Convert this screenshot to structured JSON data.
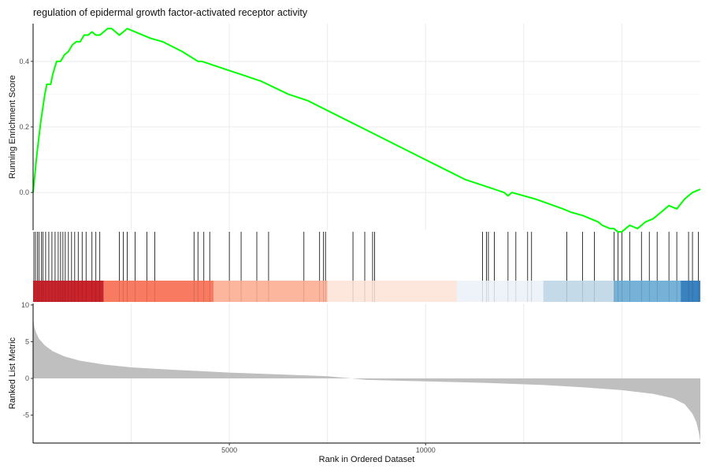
{
  "title": "regulation of epidermal growth factor-activated receptor activity",
  "chart_data": {
    "type": "line",
    "title": "regulation of epidermal growth factor-activated receptor activity",
    "xlabel": "Rank in Ordered Dataset",
    "x_range": [
      0,
      15000
    ],
    "x_ticks": [
      5000,
      10000
    ],
    "panels": {
      "running_score": {
        "ylabel": "Running Enrichment Score",
        "ylim": [
          -0.115,
          0.515
        ],
        "y_ticks": [
          0.0,
          0.2,
          0.4
        ],
        "color": "#00ff00",
        "points": [
          [
            0,
            0.0
          ],
          [
            50,
            0.06
          ],
          [
            100,
            0.12
          ],
          [
            150,
            0.17
          ],
          [
            200,
            0.22
          ],
          [
            250,
            0.26
          ],
          [
            300,
            0.3
          ],
          [
            350,
            0.33
          ],
          [
            450,
            0.33
          ],
          [
            500,
            0.36
          ],
          [
            550,
            0.38
          ],
          [
            600,
            0.4
          ],
          [
            700,
            0.4
          ],
          [
            800,
            0.42
          ],
          [
            900,
            0.43
          ],
          [
            1000,
            0.45
          ],
          [
            1100,
            0.46
          ],
          [
            1200,
            0.46
          ],
          [
            1300,
            0.48
          ],
          [
            1400,
            0.48
          ],
          [
            1500,
            0.49
          ],
          [
            1600,
            0.48
          ],
          [
            1700,
            0.48
          ],
          [
            1800,
            0.49
          ],
          [
            1900,
            0.5
          ],
          [
            2000,
            0.5
          ],
          [
            2100,
            0.49
          ],
          [
            2200,
            0.48
          ],
          [
            2300,
            0.49
          ],
          [
            2400,
            0.5
          ],
          [
            2600,
            0.49
          ],
          [
            3000,
            0.47
          ],
          [
            3300,
            0.46
          ],
          [
            3800,
            0.43
          ],
          [
            4200,
            0.4
          ],
          [
            4300,
            0.4
          ],
          [
            4800,
            0.38
          ],
          [
            5300,
            0.36
          ],
          [
            5800,
            0.34
          ],
          [
            6500,
            0.3
          ],
          [
            7000,
            0.28
          ],
          [
            7500,
            0.25
          ],
          [
            8000,
            0.22
          ],
          [
            8500,
            0.19
          ],
          [
            9000,
            0.16
          ],
          [
            9500,
            0.13
          ],
          [
            10000,
            0.1
          ],
          [
            10500,
            0.07
          ],
          [
            11000,
            0.04
          ],
          [
            11500,
            0.02
          ],
          [
            12000,
            0.0
          ],
          [
            12100,
            -0.01
          ],
          [
            12200,
            0.0
          ],
          [
            12800,
            -0.02
          ],
          [
            13500,
            -0.05
          ],
          [
            13700,
            -0.06
          ],
          [
            14000,
            -0.07
          ],
          [
            14200,
            -0.08
          ],
          [
            14400,
            -0.09
          ],
          [
            14500,
            -0.1
          ],
          [
            14700,
            -0.11
          ],
          [
            14800,
            -0.11
          ],
          [
            14900,
            -0.12
          ],
          [
            15000,
            -0.12
          ],
          [
            15200,
            -0.1
          ],
          [
            15400,
            -0.11
          ],
          [
            15600,
            -0.09
          ],
          [
            15800,
            -0.08
          ],
          [
            16000,
            -0.06
          ],
          [
            16200,
            -0.04
          ],
          [
            16400,
            -0.05
          ],
          [
            16600,
            -0.02
          ],
          [
            16800,
            0.0
          ],
          [
            17000,
            0.01
          ]
        ]
      },
      "gene_hits": {
        "positions": [
          20,
          60,
          110,
          150,
          210,
          250,
          320,
          400,
          480,
          560,
          640,
          700,
          760,
          820,
          900,
          980,
          1060,
          1150,
          1250,
          1350,
          1500,
          1600,
          1700,
          2200,
          2300,
          2400,
          2600,
          2900,
          3100,
          4100,
          4200,
          4350,
          4500,
          5000,
          5300,
          5700,
          6000,
          6900,
          7300,
          7400,
          7450,
          8150,
          8450,
          8650,
          8700,
          11450,
          11550,
          11600,
          11750,
          12100,
          12300,
          12600,
          12700,
          13600,
          14000,
          14300,
          14800,
          14900,
          15000,
          15200,
          15500,
          15700,
          15900,
          16200,
          16400,
          16700,
          16800,
          16950
        ]
      },
      "rank_bands": [
        {
          "start": 0,
          "end": 1800,
          "color": "#c9242b"
        },
        {
          "start": 1800,
          "end": 4600,
          "color": "#f87a61"
        },
        {
          "start": 4600,
          "end": 7500,
          "color": "#fcb69e"
        },
        {
          "start": 7500,
          "end": 10800,
          "color": "#fde6dc"
        },
        {
          "start": 10800,
          "end": 13000,
          "color": "#eef3fa"
        },
        {
          "start": 13000,
          "end": 14800,
          "color": "#c4dae9"
        },
        {
          "start": 14800,
          "end": 16500,
          "color": "#76b2d8"
        },
        {
          "start": 16500,
          "end": 17000,
          "color": "#3a82bf"
        }
      ],
      "ranked_metric": {
        "ylabel": "Ranked List Metric",
        "ylim": [
          -8.8,
          10.2
        ],
        "y_ticks": [
          -5,
          0,
          5,
          10
        ],
        "fill_color": "#bfbfbf",
        "points": [
          [
            0,
            8.3
          ],
          [
            30,
            7.0
          ],
          [
            80,
            6.2
          ],
          [
            150,
            5.4
          ],
          [
            300,
            4.5
          ],
          [
            500,
            3.7
          ],
          [
            800,
            3.0
          ],
          [
            1200,
            2.4
          ],
          [
            1800,
            1.9
          ],
          [
            2500,
            1.5
          ],
          [
            3500,
            1.2
          ],
          [
            5000,
            0.8
          ],
          [
            6500,
            0.5
          ],
          [
            7500,
            0.3
          ],
          [
            8000,
            0.05
          ],
          [
            8500,
            -0.2
          ],
          [
            10000,
            -0.4
          ],
          [
            11500,
            -0.6
          ],
          [
            13000,
            -0.9
          ],
          [
            14000,
            -1.2
          ],
          [
            15000,
            -1.6
          ],
          [
            15800,
            -2.1
          ],
          [
            16300,
            -2.7
          ],
          [
            16600,
            -3.5
          ],
          [
            16800,
            -4.8
          ],
          [
            16900,
            -6.0
          ],
          [
            16960,
            -7.3
          ],
          [
            17000,
            -8.6
          ]
        ]
      }
    }
  }
}
